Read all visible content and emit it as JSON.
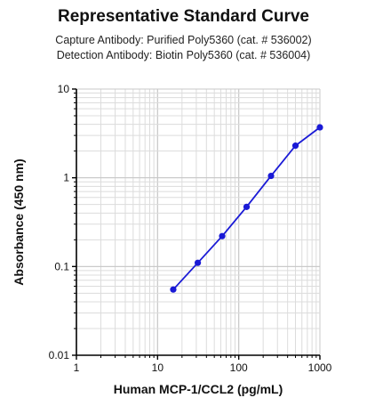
{
  "chart_data": {
    "type": "line",
    "title": "Representative Standard Curve",
    "subtitle_lines": [
      "Capture Antibody: Purified Poly5360 (cat. # 536002)",
      "Detection Antibody: Biotin Poly5360 (cat. # 536004)"
    ],
    "xlabel": "Human MCP-1/CCL2 (pg/mL)",
    "ylabel": "Absorbance (450 nm)",
    "x_scale": "log",
    "y_scale": "log",
    "xlim": [
      1,
      1000
    ],
    "ylim": [
      0.01,
      10
    ],
    "x_ticks": [
      "1",
      "10",
      "100",
      "1000"
    ],
    "y_ticks": [
      "0.01",
      "0.1",
      "1",
      "10"
    ],
    "grid": true,
    "series": [
      {
        "color": "#1a1ad6",
        "x": [
          15.6,
          31.3,
          62.5,
          125,
          250,
          500,
          1000
        ],
        "y": [
          0.055,
          0.11,
          0.22,
          0.47,
          1.05,
          2.3,
          3.7
        ]
      }
    ]
  }
}
